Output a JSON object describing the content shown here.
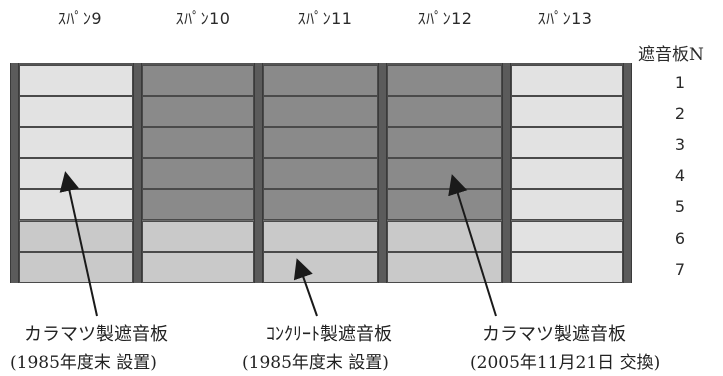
{
  "spans": [
    {
      "label": "ｽﾊﾟﾝ9"
    },
    {
      "label": "ｽﾊﾟﾝ10"
    },
    {
      "label": "ｽﾊﾟﾝ11"
    },
    {
      "label": "ｽﾊﾟﾝ12"
    },
    {
      "label": "ｽﾊﾟﾝ13"
    }
  ],
  "panel_header": "遮音板N",
  "rows": [
    "1",
    "2",
    "3",
    "4",
    "5",
    "6",
    "7"
  ],
  "captions": [
    {
      "title": "カラマツ製遮音板",
      "date": "(1985年度末 設置)"
    },
    {
      "title": "ｺﾝｸﾘｰﾄ製遮音板",
      "date": "(1985年度末 設置)"
    },
    {
      "title": "カラマツ製遮音板",
      "date": "(2005年11月21日 交換)"
    }
  ],
  "colors": {
    "light_panel": "#e2e2e2",
    "dark_panel": "#8a8a8a",
    "mid_panel": "#c9c9c9"
  }
}
